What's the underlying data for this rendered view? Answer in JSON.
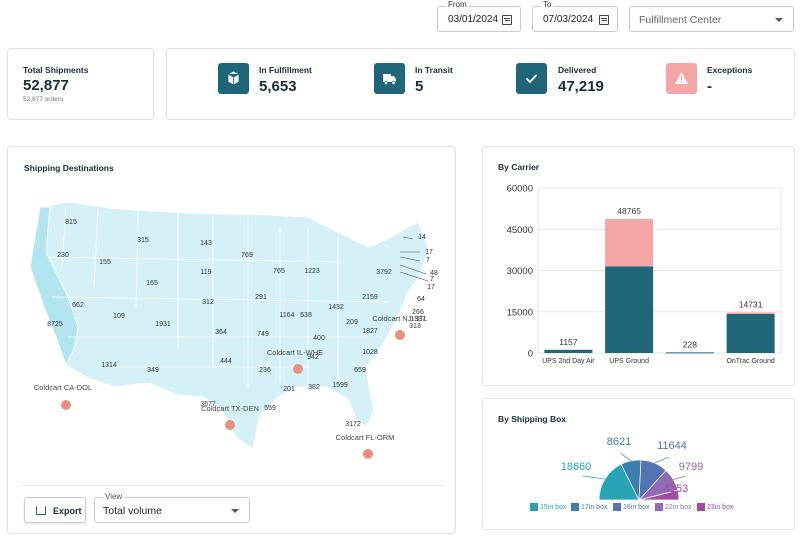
{
  "header": {
    "from_label": "From",
    "from_value": "03/01/2024",
    "to_label": "To",
    "to_value": "07/03/2024",
    "center_select": "Fulfillment Center"
  },
  "kpis": {
    "total": {
      "label": "Total Shipments",
      "value": "52,877",
      "sub": "52,877 orders"
    },
    "fulfillment": {
      "label": "In Fulfillment",
      "value": "5,653"
    },
    "transit": {
      "label": "In Transit",
      "value": "5"
    },
    "delivered": {
      "label": "Delivered",
      "value": "47,219"
    },
    "exceptions": {
      "label": "Exceptions",
      "value": "-"
    }
  },
  "map": {
    "title": "Shipping Destinations",
    "export_label": "Export",
    "view_label": "View",
    "view_value": "Total volume",
    "warehouses": [
      "Coldcart CA-DOL",
      "Coldcart IL-WHE",
      "Coldcart NJ-STL",
      "Coldcart TX-DEN",
      "Coldcart FL-ORM"
    ],
    "state_values": [
      "815",
      "230",
      "155",
      "315",
      "143",
      "769",
      "165",
      "119",
      "765",
      "1223",
      "3792",
      "14",
      "17",
      "7",
      "48",
      "7",
      "17",
      "64",
      "291",
      "312",
      "8725",
      "662",
      "109",
      "1931",
      "1164",
      "538",
      "1432",
      "2159",
      "209",
      "266",
      "1397",
      "313",
      "364",
      "749",
      "400",
      "1827",
      "1314",
      "349",
      "444",
      "236",
      "942",
      "1028",
      "201",
      "382",
      "659",
      "3677",
      "559",
      "1599",
      "3172"
    ],
    "colors": {
      "land": "#d5f1f7",
      "california": "#b1e5f0",
      "pin": "#e8917f"
    }
  },
  "carrier": {
    "title": "By Carrier",
    "colors": {
      "delivered": "#1f6679",
      "exception": "#f4a5a5"
    }
  },
  "chart_data": [
    {
      "type": "bar",
      "title": "By Carrier",
      "categories": [
        "UPS 2nd Day Air",
        "UPS Ground",
        "",
        "OnTrac Ground"
      ],
      "series": [
        {
          "values": [
            1157,
            31500,
            228,
            14200
          ]
        },
        {
          "values": [
            0,
            17265,
            0,
            531
          ]
        }
      ],
      "totals": [
        1157,
        48765,
        228,
        14731
      ],
      "ylim": [
        0,
        60000
      ],
      "yticks": [
        0,
        15000,
        30000,
        45000,
        60000
      ],
      "grid": true
    },
    {
      "type": "pie",
      "title": "By Shipping Box",
      "labels": [
        "15in box",
        "17in box",
        "16in box",
        "22in box",
        "23in box"
      ],
      "values": [
        18660,
        8621,
        11644,
        9799,
        4153
      ],
      "colors": [
        "#27a3b5",
        "#3c7fae",
        "#5274b3",
        "#8f6ab5",
        "#a14d9e"
      ],
      "legend": "bottom"
    }
  ],
  "shipping_box": {
    "title": "By Shipping Box"
  }
}
